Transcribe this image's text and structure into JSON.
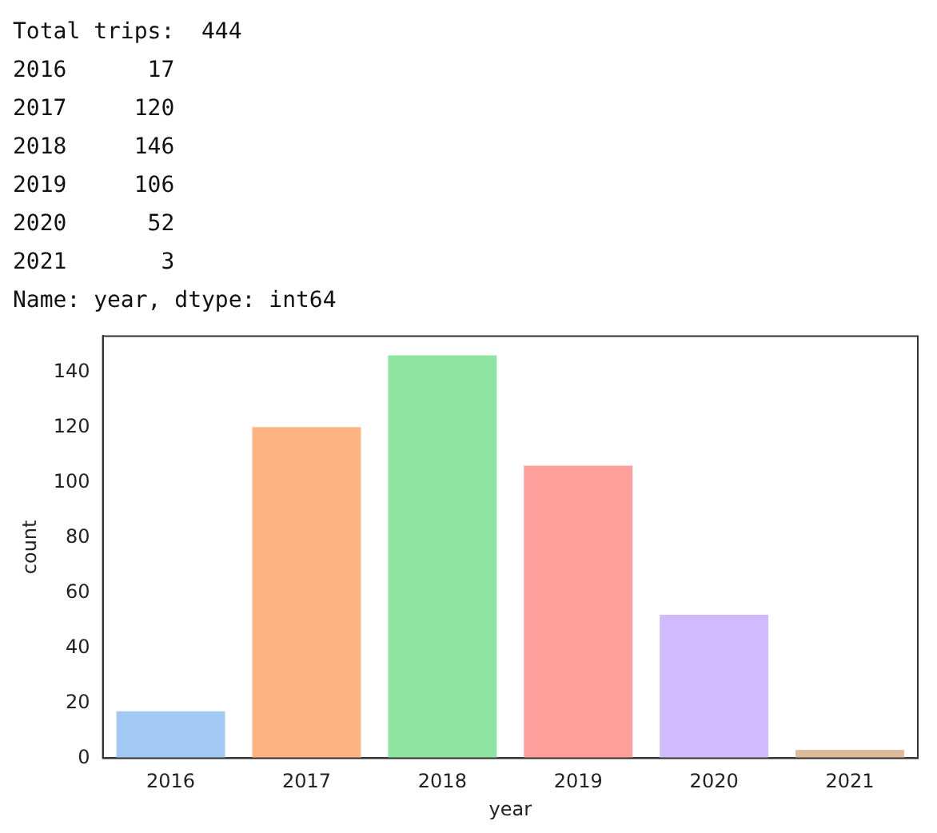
{
  "chart_data": {
    "type": "bar",
    "xlabel": "year",
    "ylabel": "count",
    "categories": [
      "2016",
      "2017",
      "2018",
      "2019",
      "2020",
      "2021"
    ],
    "values": [
      17,
      120,
      146,
      106,
      52,
      3
    ],
    "colors": [
      "#a1c9f4",
      "#ffb482",
      "#8de5a1",
      "#ff9f9b",
      "#d0bbff",
      "#debb9b"
    ],
    "ylim": [
      0,
      153
    ],
    "yticks": [
      0,
      20,
      40,
      60,
      80,
      100,
      120,
      140
    ],
    "grid": false,
    "legend": false,
    "annotations": [
      "Total trips:  444",
      "2016      17",
      "2017     120",
      "2018     146",
      "2019     106",
      "2020      52",
      "2021       3",
      "Name: year, dtype: int64"
    ]
  }
}
